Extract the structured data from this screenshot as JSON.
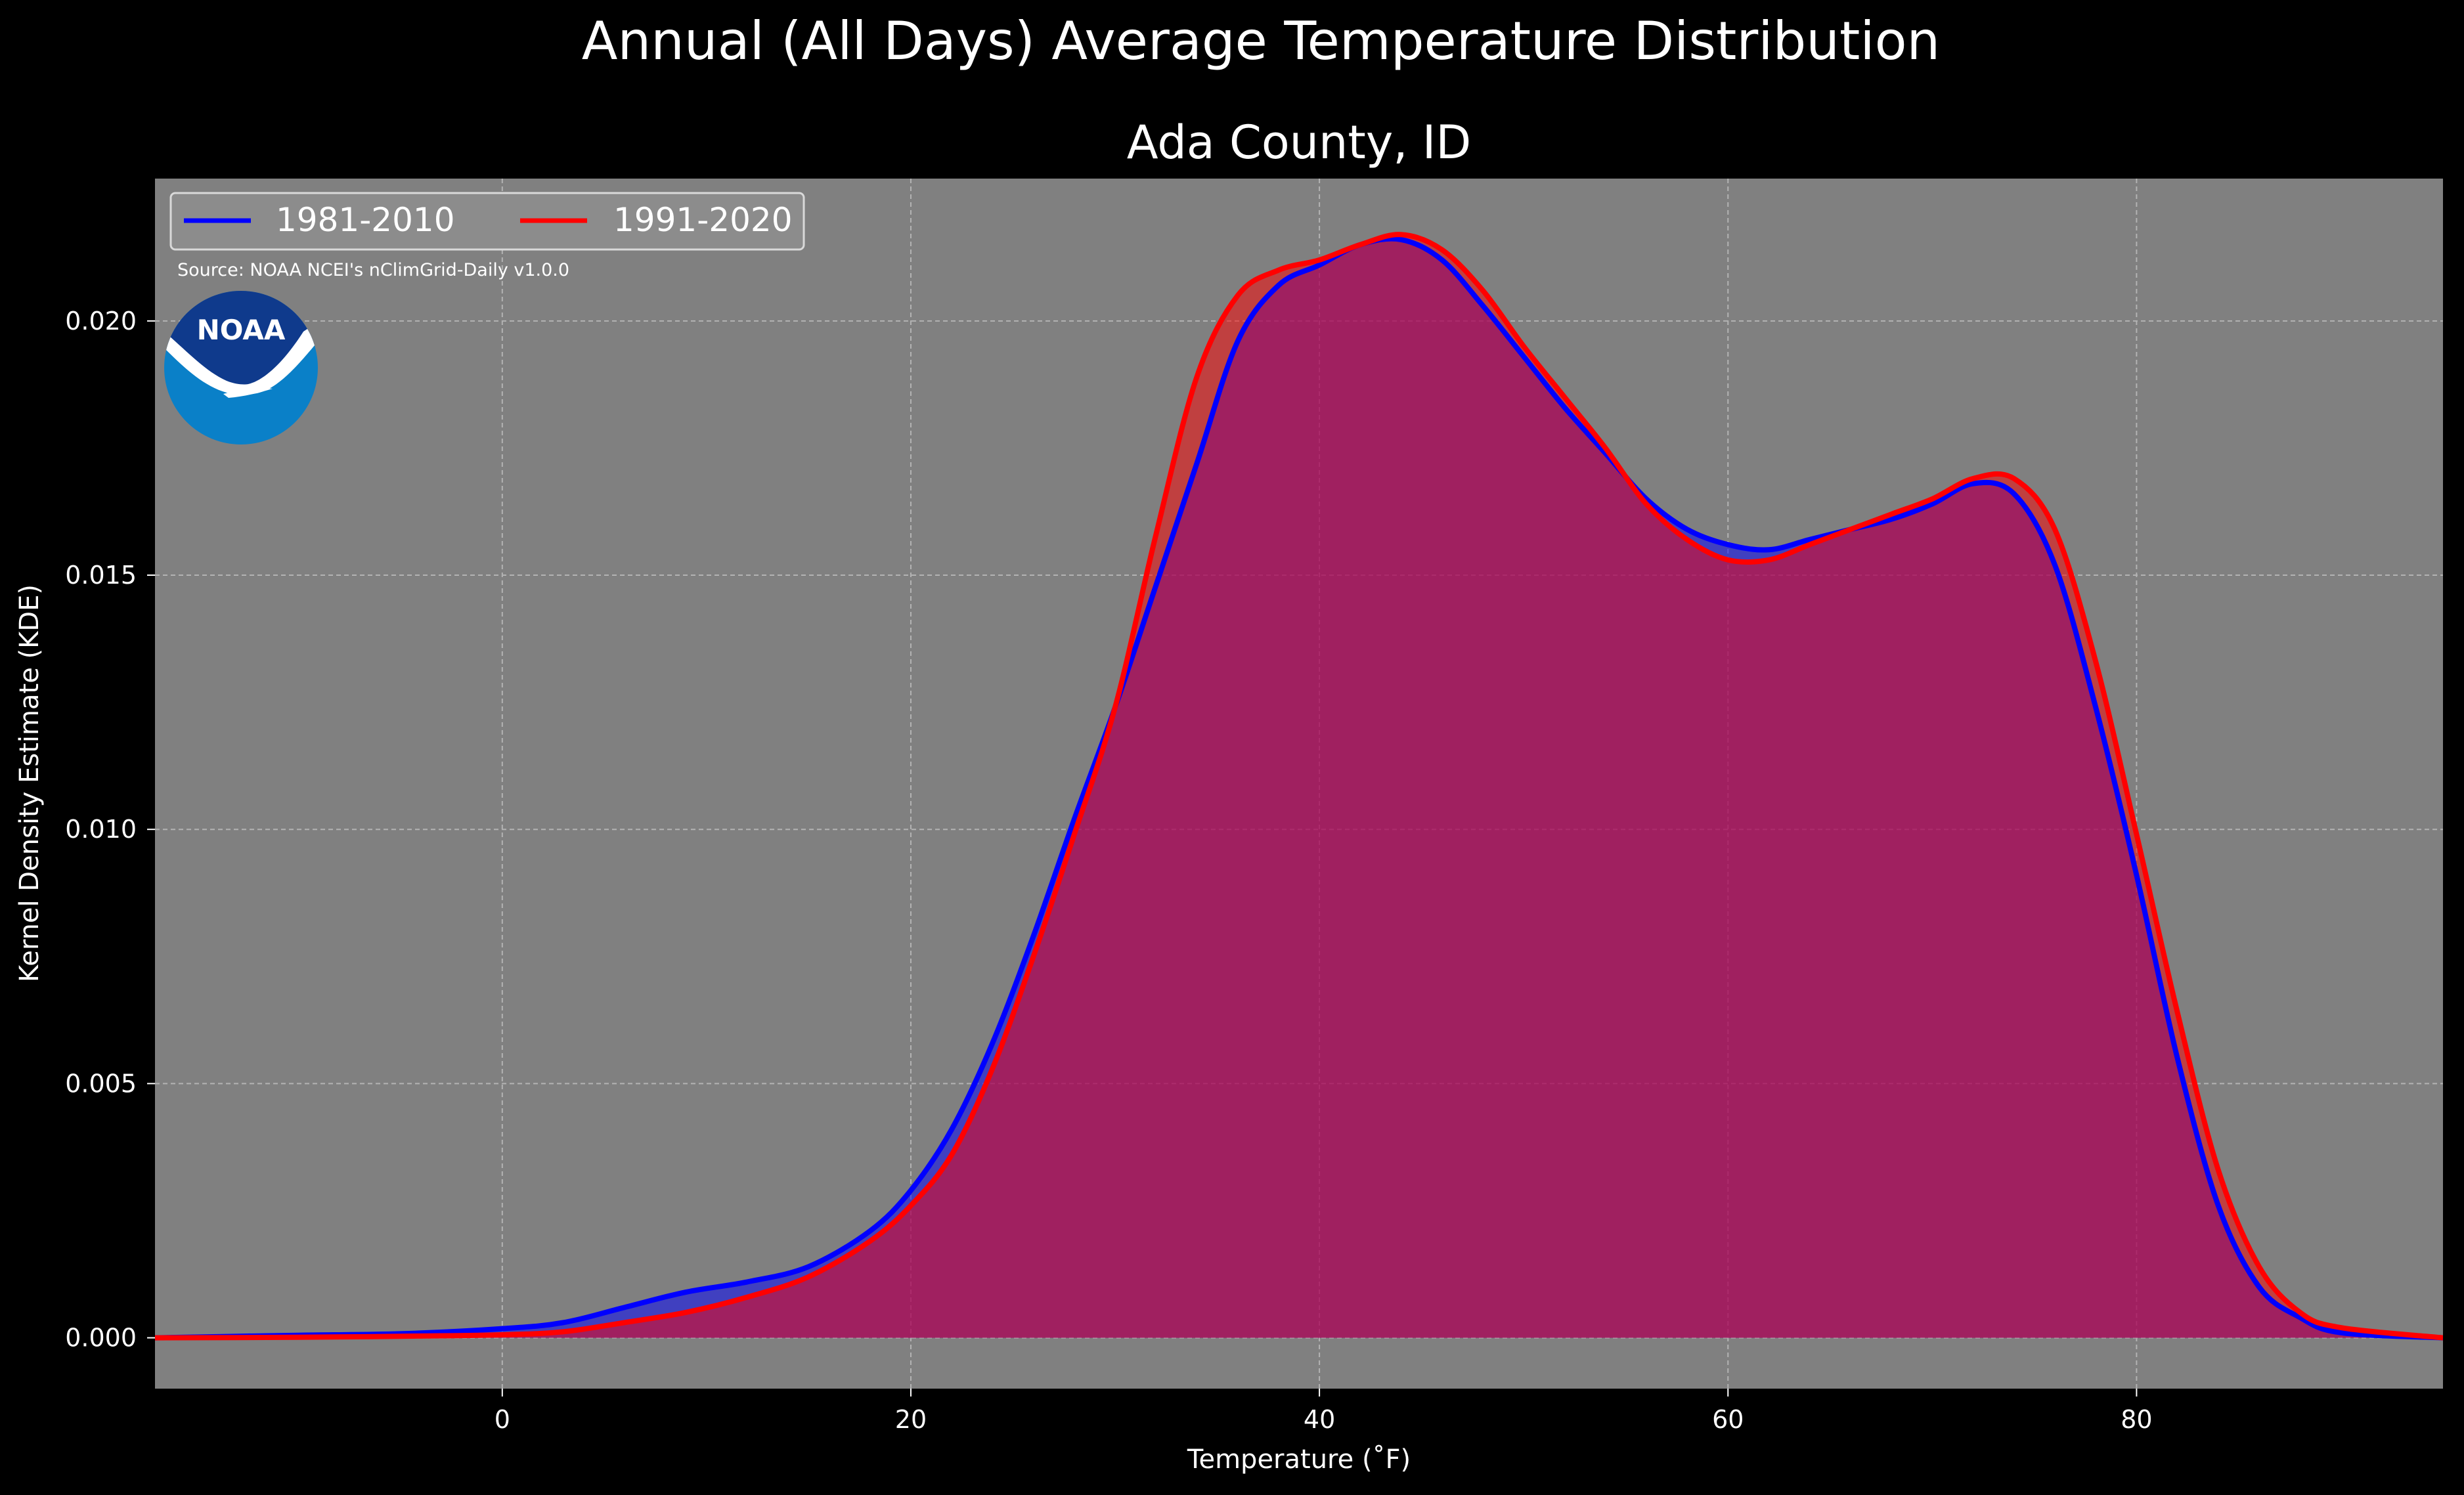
{
  "chart_data": {
    "type": "area",
    "suptitle": "Annual (All Days) Average Temperature Distribution",
    "title": "Ada County, ID",
    "xlabel": "Temperature (˚F)",
    "ylabel": "Kernel Density Estimate (KDE)",
    "source_note": "Source: NOAA NCEI's nClimGrid-Daily v1.0.0",
    "logo_text": "NOAA",
    "xlim": [
      -17,
      95
    ],
    "ylim": [
      -0.001,
      0.0228
    ],
    "xticks": [
      0,
      20,
      40,
      60,
      80
    ],
    "xtick_labels": [
      "0",
      "20",
      "40",
      "60",
      "80"
    ],
    "yticks": [
      0.0,
      0.005,
      0.01,
      0.015,
      0.02
    ],
    "ytick_labels": [
      "0.000",
      "0.005",
      "0.010",
      "0.015",
      "0.020"
    ],
    "grid": true,
    "legend_position": "top-left",
    "background_color": "#808080",
    "figure_color": "#000000",
    "series": [
      {
        "name": "1981-2010",
        "color": "#0000ff",
        "x": [
          -17,
          -10,
          -5,
          0,
          3,
          6,
          9,
          12,
          15,
          18,
          20,
          22,
          24,
          26,
          28,
          30,
          32,
          34,
          36,
          38,
          40,
          42,
          44,
          46,
          48,
          50,
          52,
          54,
          56,
          58,
          60,
          62,
          64,
          66,
          68,
          70,
          72,
          74,
          76,
          78,
          80,
          82,
          84,
          86,
          88,
          90,
          95
        ],
        "y": [
          0.0,
          5e-05,
          8e-05,
          0.00018,
          0.0003,
          0.0006,
          0.0009,
          0.0011,
          0.0014,
          0.0021,
          0.0029,
          0.0041,
          0.0058,
          0.0079,
          0.0102,
          0.0124,
          0.0148,
          0.0172,
          0.0196,
          0.0207,
          0.0211,
          0.0215,
          0.0216,
          0.0212,
          0.0203,
          0.0193,
          0.0183,
          0.0174,
          0.0165,
          0.0159,
          0.0156,
          0.0155,
          0.0157,
          0.0159,
          0.0161,
          0.0164,
          0.0168,
          0.0166,
          0.0152,
          0.0124,
          0.0091,
          0.0055,
          0.0026,
          0.001,
          0.0004,
          0.0001,
          0.0
        ]
      },
      {
        "name": "1991-2020",
        "color": "#ff0000",
        "x": [
          -17,
          -10,
          -5,
          0,
          3,
          6,
          9,
          12,
          15,
          18,
          20,
          22,
          24,
          26,
          28,
          30,
          32,
          34,
          36,
          38,
          40,
          42,
          44,
          46,
          48,
          50,
          52,
          54,
          56,
          58,
          60,
          62,
          64,
          66,
          68,
          70,
          72,
          74,
          76,
          78,
          80,
          82,
          84,
          86,
          88,
          90,
          95
        ],
        "y": [
          0.0,
          1e-05,
          3e-05,
          6e-05,
          0.00012,
          0.0003,
          0.0005,
          0.0008,
          0.0012,
          0.0019,
          0.0026,
          0.0036,
          0.0053,
          0.0075,
          0.0099,
          0.0124,
          0.0158,
          0.0189,
          0.0205,
          0.021,
          0.0212,
          0.0215,
          0.0217,
          0.0214,
          0.0206,
          0.0195,
          0.0185,
          0.0175,
          0.0164,
          0.0157,
          0.0153,
          0.0153,
          0.0156,
          0.0159,
          0.0162,
          0.0165,
          0.0169,
          0.0169,
          0.0159,
          0.0133,
          0.0099,
          0.0064,
          0.0033,
          0.0014,
          0.0005,
          0.0002,
          0.0
        ]
      }
    ]
  }
}
